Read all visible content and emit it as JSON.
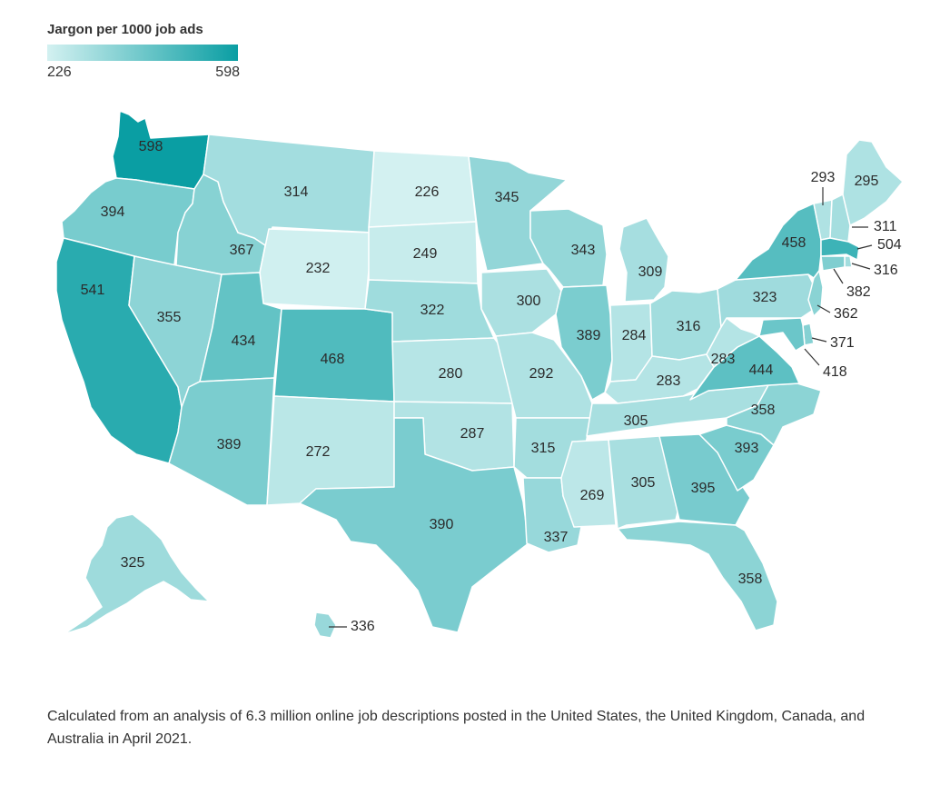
{
  "legend": {
    "title": "Jargon per 1000 job ads",
    "min": 226,
    "max": 598,
    "color_min": "#d3f1f1",
    "color_max": "#0a9ea3"
  },
  "caption": "Calculated from an analysis of 6.3 million online job descriptions posted in the United States, the United Kingdom, Canada, and Australia in April 2021.",
  "states": [
    {
      "code": "WA",
      "value": 598
    },
    {
      "code": "OR",
      "value": 394
    },
    {
      "code": "CA",
      "value": 541
    },
    {
      "code": "ID",
      "value": 367
    },
    {
      "code": "NV",
      "value": 355
    },
    {
      "code": "MT",
      "value": 314
    },
    {
      "code": "WY",
      "value": 232
    },
    {
      "code": "UT",
      "value": 434
    },
    {
      "code": "AZ",
      "value": 389
    },
    {
      "code": "CO",
      "value": 468
    },
    {
      "code": "NM",
      "value": 272
    },
    {
      "code": "ND",
      "value": 226
    },
    {
      "code": "SD",
      "value": 249
    },
    {
      "code": "NE",
      "value": 322
    },
    {
      "code": "KS",
      "value": 280
    },
    {
      "code": "OK",
      "value": 287
    },
    {
      "code": "TX",
      "value": 390
    },
    {
      "code": "MN",
      "value": 345
    },
    {
      "code": "IA",
      "value": 300
    },
    {
      "code": "MO",
      "value": 292
    },
    {
      "code": "AR",
      "value": 315
    },
    {
      "code": "LA",
      "value": 337
    },
    {
      "code": "WI",
      "value": 343
    },
    {
      "code": "IL",
      "value": 389
    },
    {
      "code": "MI",
      "value": 309
    },
    {
      "code": "IN",
      "value": 284
    },
    {
      "code": "OH",
      "value": 316
    },
    {
      "code": "KY",
      "value": 283
    },
    {
      "code": "TN",
      "value": 305
    },
    {
      "code": "MS",
      "value": 269
    },
    {
      "code": "AL",
      "value": 305
    },
    {
      "code": "GA",
      "value": 395
    },
    {
      "code": "FL",
      "value": 358
    },
    {
      "code": "SC",
      "value": 393
    },
    {
      "code": "NC",
      "value": 358
    },
    {
      "code": "VA",
      "value": 444
    },
    {
      "code": "WV",
      "value": 283
    },
    {
      "code": "PA",
      "value": 323
    },
    {
      "code": "NY",
      "value": 458
    },
    {
      "code": "VT",
      "value": 293
    },
    {
      "code": "NH",
      "value": 311
    },
    {
      "code": "ME",
      "value": 295
    },
    {
      "code": "MA",
      "value": 504
    },
    {
      "code": "RI",
      "value": 316
    },
    {
      "code": "CT",
      "value": 382
    },
    {
      "code": "NJ",
      "value": 362
    },
    {
      "code": "DE",
      "value": 371
    },
    {
      "code": "MD",
      "value": 418
    },
    {
      "code": "AK",
      "value": 325
    },
    {
      "code": "HI",
      "value": 336
    }
  ]
}
